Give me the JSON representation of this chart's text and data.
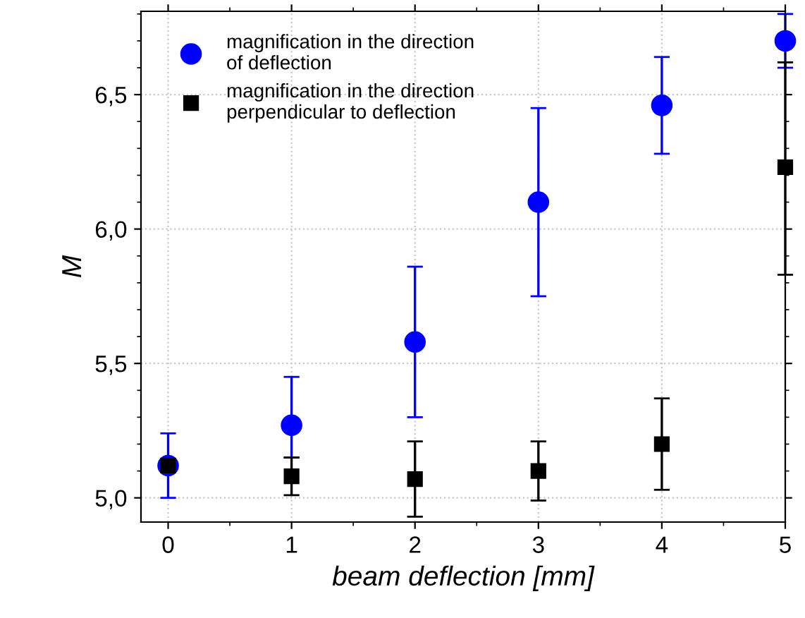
{
  "chart_data": {
    "type": "scatter",
    "xlabel": "beam deflection [mm]",
    "ylabel": "M",
    "x": [
      0,
      1,
      2,
      3,
      4,
      5
    ],
    "series": [
      {
        "name": "magnification in the direction\nof deflection",
        "color": "#0000ff",
        "marker": "circle",
        "values": [
          5.12,
          5.27,
          5.58,
          6.1,
          6.46,
          6.7
        ],
        "errors": [
          [
            5.0,
            5.24
          ],
          [
            5.15,
            5.45
          ],
          [
            5.3,
            5.86
          ],
          [
            5.75,
            6.45
          ],
          [
            6.28,
            6.64
          ],
          [
            6.6,
            6.8
          ]
        ]
      },
      {
        "name": "magnification in the direction\nperpendicular to deflection",
        "color": "#000000",
        "marker": "square",
        "values": [
          5.12,
          5.08,
          5.07,
          5.1,
          5.2,
          6.23
        ],
        "errors": [
          null,
          [
            5.01,
            5.15
          ],
          [
            4.93,
            5.21
          ],
          [
            4.99,
            5.21
          ],
          [
            5.03,
            5.37
          ],
          [
            5.83,
            6.62
          ]
        ]
      }
    ],
    "xlim": [
      -0.22,
      5.0
    ],
    "xticks": [
      0,
      1,
      2,
      3,
      4,
      5
    ],
    "ylim": [
      4.91,
      6.81
    ],
    "yticks": [
      {
        "value": 5.0,
        "label": "5,0"
      },
      {
        "value": 5.5,
        "label": "5,5"
      },
      {
        "value": 6.0,
        "label": "6,0"
      },
      {
        "value": 6.5,
        "label": "6,5"
      }
    ],
    "grid": true,
    "legend": "top left"
  }
}
